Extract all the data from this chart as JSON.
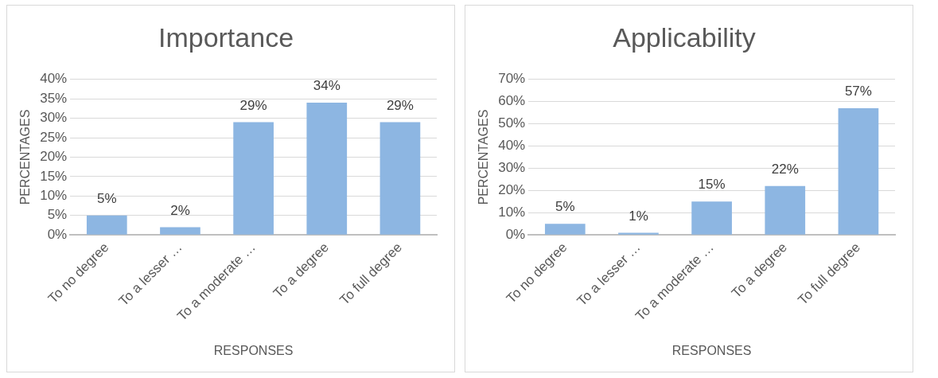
{
  "chart_data": [
    {
      "type": "bar",
      "title": "Importance",
      "xlabel": "RESPONSES",
      "ylabel": "PERCENTAGES",
      "categories": [
        "To no degree",
        "To a lesser …",
        "To a moderate …",
        "To a degree",
        "To full degree"
      ],
      "values": [
        5,
        2,
        29,
        34,
        29
      ],
      "value_labels": [
        "5%",
        "2%",
        "29%",
        "34%",
        "29%"
      ],
      "color": "#8db6e2",
      "ylim": [
        0,
        40
      ],
      "yticks": [
        {
          "value": 0,
          "label": "0%"
        },
        {
          "value": 5,
          "label": "5%"
        },
        {
          "value": 10,
          "label": "10%"
        },
        {
          "value": 15,
          "label": "15%"
        },
        {
          "value": 20,
          "label": "20%"
        },
        {
          "value": 25,
          "label": "25%"
        },
        {
          "value": 30,
          "label": "30%"
        },
        {
          "value": 35,
          "label": "35%"
        },
        {
          "value": 40,
          "label": "40%"
        }
      ],
      "grid": true
    },
    {
      "type": "bar",
      "title": "Applicability",
      "xlabel": "RESPONSES",
      "ylabel": "PERCENTAGES",
      "categories": [
        "To no degree",
        "To a lesser …",
        "To a moderate …",
        "To a degree",
        "To full degree"
      ],
      "values": [
        5,
        1,
        15,
        22,
        57
      ],
      "value_labels": [
        "5%",
        "1%",
        "15%",
        "22%",
        "57%"
      ],
      "color": "#8db6e2",
      "ylim": [
        0,
        70
      ],
      "yticks": [
        {
          "value": 0,
          "label": "0%"
        },
        {
          "value": 10,
          "label": "10%"
        },
        {
          "value": 20,
          "label": "20%"
        },
        {
          "value": 30,
          "label": "30%"
        },
        {
          "value": 40,
          "label": "40%"
        },
        {
          "value": 50,
          "label": "50%"
        },
        {
          "value": 60,
          "label": "60%"
        },
        {
          "value": 70,
          "label": "70%"
        }
      ],
      "grid": true
    }
  ]
}
